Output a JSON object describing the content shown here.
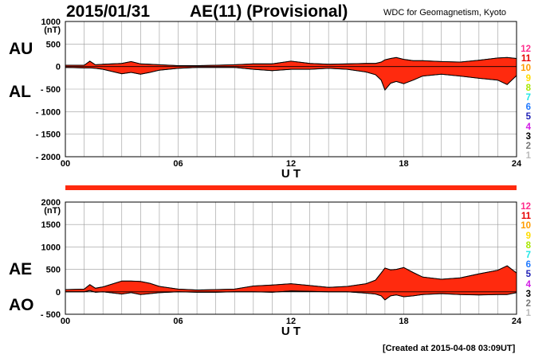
{
  "header": {
    "date": "2015/01/31",
    "title": "AE(11) (Provisional)",
    "source": "WDC for Geomagnetism, Kyoto"
  },
  "footer": {
    "created": "[Created at 2015-04-08 03:09UT]"
  },
  "colors": {
    "fill": "#ff2a0e",
    "grid": "#9a9a9a",
    "axis": "#000000"
  },
  "station_key": [
    {
      "label": "12",
      "color": "#ff2d8c"
    },
    {
      "label": "11",
      "color": "#e60000"
    },
    {
      "label": "10",
      "color": "#ff9c00"
    },
    {
      "label": "9",
      "color": "#ffdc00"
    },
    {
      "label": "8",
      "color": "#a8e600"
    },
    {
      "label": "7",
      "color": "#1ee6e6"
    },
    {
      "label": "6",
      "color": "#1e78ff"
    },
    {
      "label": "5",
      "color": "#1e1eb4"
    },
    {
      "label": "4",
      "color": "#d21ee6"
    },
    {
      "label": "3",
      "color": "#000000"
    },
    {
      "label": "2",
      "color": "#777777"
    },
    {
      "label": "1",
      "color": "#bbbbbb"
    }
  ],
  "chart_data": [
    {
      "type": "area",
      "name": "AU/AL",
      "side_labels": [
        "AU",
        "AL"
      ],
      "unit_label": "(nT)",
      "xlabel": "U T",
      "x_ticks": [
        "00",
        "06",
        "12",
        "18",
        "24"
      ],
      "xlim": [
        0,
        24
      ],
      "ylim": [
        -2000,
        1000
      ],
      "y_ticks": [
        1000,
        500,
        0,
        -500,
        -1000,
        -1500,
        -2000
      ],
      "y_tick_labels": [
        "1000",
        "500",
        "0",
        "- 500",
        "- 1000",
        "- 1500",
        "- 2000"
      ],
      "x": [
        0,
        1,
        1.3,
        1.6,
        2,
        3,
        3.5,
        4,
        4.5,
        5,
        6,
        7,
        8,
        9,
        10,
        11,
        12,
        13,
        14,
        15,
        16,
        16.5,
        16.8,
        17,
        17.3,
        17.6,
        18,
        18.5,
        19,
        20,
        21,
        22,
        23,
        23.5,
        24
      ],
      "upper": [
        30,
        30,
        120,
        40,
        50,
        70,
        110,
        60,
        50,
        40,
        20,
        20,
        30,
        40,
        60,
        60,
        120,
        70,
        50,
        60,
        70,
        70,
        100,
        150,
        180,
        200,
        160,
        130,
        130,
        110,
        100,
        140,
        190,
        200,
        180
      ],
      "lower": [
        -20,
        -30,
        -30,
        -40,
        -60,
        -160,
        -130,
        -170,
        -130,
        -80,
        -40,
        -20,
        -20,
        -20,
        -60,
        -90,
        -60,
        -60,
        -40,
        -60,
        -120,
        -180,
        -300,
        -520,
        -370,
        -330,
        -380,
        -300,
        -210,
        -170,
        -210,
        -260,
        -300,
        -400,
        -200
      ]
    },
    {
      "type": "area",
      "name": "AE/AO",
      "side_labels": [
        "AE",
        "AO"
      ],
      "unit_label": "(nT)",
      "xlabel": "U T",
      "x_ticks": [
        "00",
        "06",
        "12",
        "18",
        "24"
      ],
      "xlim": [
        0,
        24
      ],
      "ylim": [
        -500,
        2000
      ],
      "y_ticks": [
        2000,
        1500,
        1000,
        500,
        0,
        -500
      ],
      "y_tick_labels": [
        "2000",
        "1500",
        "1000",
        "500",
        "0",
        "- 500"
      ],
      "x": [
        0,
        1,
        1.3,
        1.6,
        2,
        3,
        3.5,
        4,
        4.5,
        5,
        6,
        7,
        8,
        9,
        10,
        11,
        12,
        13,
        14,
        15,
        16,
        16.5,
        16.8,
        17,
        17.3,
        17.6,
        18,
        18.5,
        19,
        20,
        21,
        22,
        23,
        23.5,
        24
      ],
      "upper": [
        50,
        60,
        160,
        80,
        110,
        240,
        240,
        230,
        190,
        120,
        60,
        40,
        50,
        60,
        130,
        150,
        180,
        140,
        100,
        120,
        180,
        260,
        420,
        530,
        490,
        500,
        540,
        430,
        330,
        280,
        310,
        400,
        480,
        580,
        420
      ],
      "lower": [
        0,
        0,
        30,
        -10,
        0,
        -50,
        -20,
        -60,
        -40,
        -20,
        0,
        -10,
        -10,
        0,
        0,
        -10,
        20,
        10,
        0,
        0,
        -30,
        -50,
        -90,
        -180,
        -90,
        -70,
        -110,
        -90,
        -60,
        -40,
        -60,
        -70,
        -60,
        -60,
        -20
      ]
    }
  ]
}
